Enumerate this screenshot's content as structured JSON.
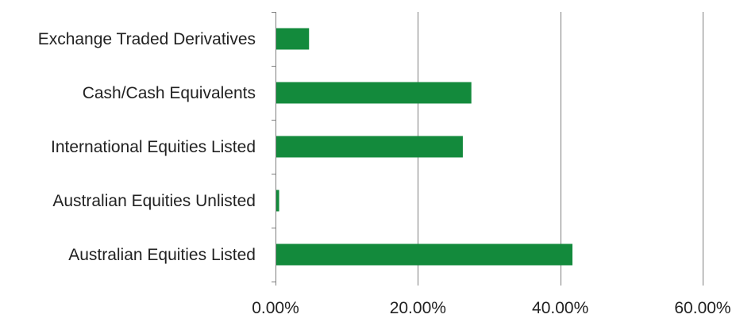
{
  "chart_data": {
    "type": "bar",
    "orientation": "horizontal",
    "title": "",
    "xlabel": "",
    "ylabel": "",
    "categories": [
      "Exchange Traded Derivatives",
      "Cash/Cash Equivalents",
      "International Equities Listed",
      "Australian Equities Unlisted",
      "Australian Equities Listed"
    ],
    "values": [
      4.6,
      27.4,
      26.2,
      0.4,
      41.6
    ],
    "xlim": [
      0,
      60
    ],
    "xticks": [
      0,
      20,
      40,
      60
    ],
    "xtick_labels": [
      "0.00%",
      "20.00%",
      "40.00%",
      "60.00%"
    ],
    "grid": "vertical",
    "legend": "none",
    "bar_color": "#138a3c",
    "gridline_color": "#7f7f7f",
    "axis_color": "#7f7f7f"
  }
}
